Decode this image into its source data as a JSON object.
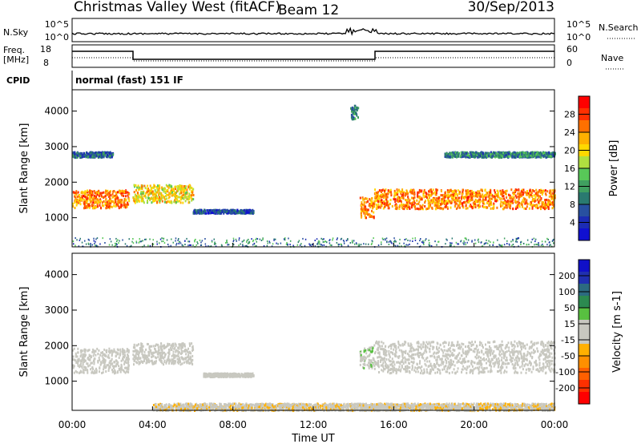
{
  "header": {
    "station": "Christmas Valley West (fitACF)",
    "beam": "Beam 12",
    "date": "30/Sep/2013"
  },
  "noise_panel": {
    "left_label": "N.Sky",
    "left_ticks": [
      "10^5",
      "10^0"
    ],
    "right_ticks": [
      "10^5",
      "10^0"
    ],
    "right_label": "N.Search"
  },
  "freq_panel": {
    "left_label_1": "Freq.",
    "left_label_2": "[MHz]",
    "left_ticks": [
      "18",
      "8"
    ],
    "right_ticks": [
      "60",
      "0"
    ],
    "right_label": "Nave"
  },
  "cpid": {
    "label": "CPID",
    "value": "normal (fast) 151 IF"
  },
  "colors": {
    "grey_scatter": "#c8c8c0",
    "frame": "#000000"
  },
  "chart_data": [
    {
      "type": "heatmap",
      "title": "Power",
      "ylabel": "Slant Range [km]",
      "colorbar_label": "Power [dB]",
      "colorbar_ticks": [
        "28",
        "24",
        "20",
        "16",
        "12",
        "8",
        "4"
      ],
      "colorbar_colors": [
        "#ff0000",
        "#ff3000",
        "#ff7000",
        "#ffb000",
        "#ffd800",
        "#b0e040",
        "#58c858",
        "#40a060",
        "#2a7a70",
        "#2850a0",
        "#1c2cb4",
        "#1010d0"
      ],
      "yticks": [
        "4000",
        "3000",
        "2000",
        "1000"
      ],
      "ylim": [
        180,
        4600
      ],
      "xlim": [
        0,
        24
      ],
      "bands": [
        {
          "from": 0.0,
          "to": 2.8,
          "center": 1550,
          "width": 500,
          "level": 24
        },
        {
          "from": 3.0,
          "to": 6.0,
          "center": 1700,
          "width": 500,
          "level": 20
        },
        {
          "from": 14.3,
          "to": 15.0,
          "center": 1300,
          "width": 600,
          "level": 24
        },
        {
          "from": 15.0,
          "to": 24.0,
          "center": 1550,
          "width": 550,
          "level": 24
        },
        {
          "from": 0.0,
          "to": 2.0,
          "center": 2800,
          "width": 150,
          "level": 8
        },
        {
          "from": 6.0,
          "to": 9.0,
          "center": 1200,
          "width": 100,
          "level": 6
        },
        {
          "from": 18.5,
          "to": 24.0,
          "center": 2800,
          "width": 150,
          "level": 10
        },
        {
          "from": 13.8,
          "to": 14.2,
          "center": 4000,
          "width": 400,
          "level": 10
        }
      ]
    },
    {
      "type": "heatmap",
      "title": "Velocity",
      "ylabel": "Slant Range [km]",
      "xlabel": "Time UT",
      "colorbar_label": "Velocity [m s-1]",
      "colorbar_ticks": [
        "200",
        "100",
        "50",
        "15",
        "-15",
        "-50",
        "-100",
        "-200"
      ],
      "colorbar_colors": [
        "#1010c8",
        "#2030b0",
        "#2c6a80",
        "#2c8a50",
        "#58c040",
        "#c8c8c0",
        "#c8c8c0",
        "#ffb000",
        "#ff9000",
        "#ff6000",
        "#ff3000",
        "#ff0000"
      ],
      "yticks": [
        "4000",
        "3000",
        "2000",
        "1000"
      ],
      "ylim": [
        180,
        4600
      ],
      "xlim": [
        0,
        24
      ],
      "xticks": [
        "00:00",
        "04:00",
        "08:00",
        "12:00",
        "16:00",
        "20:00",
        "00:00"
      ],
      "bands": [
        {
          "from": 0.0,
          "to": 2.8,
          "center": 1600,
          "width": 700,
          "velocity": 0
        },
        {
          "from": 3.0,
          "to": 6.0,
          "center": 1800,
          "width": 600,
          "velocity": 0
        },
        {
          "from": 15.0,
          "to": 24.0,
          "center": 1700,
          "width": 900,
          "velocity": 0
        },
        {
          "from": 14.3,
          "to": 15.0,
          "center": 1700,
          "width": 600,
          "velocity": 40
        },
        {
          "from": 6.5,
          "to": 9.0,
          "center": 1200,
          "width": 100,
          "velocity": -20
        },
        {
          "from": 4.0,
          "to": 24.0,
          "center": 300,
          "width": 200,
          "velocity": -40
        }
      ]
    }
  ]
}
